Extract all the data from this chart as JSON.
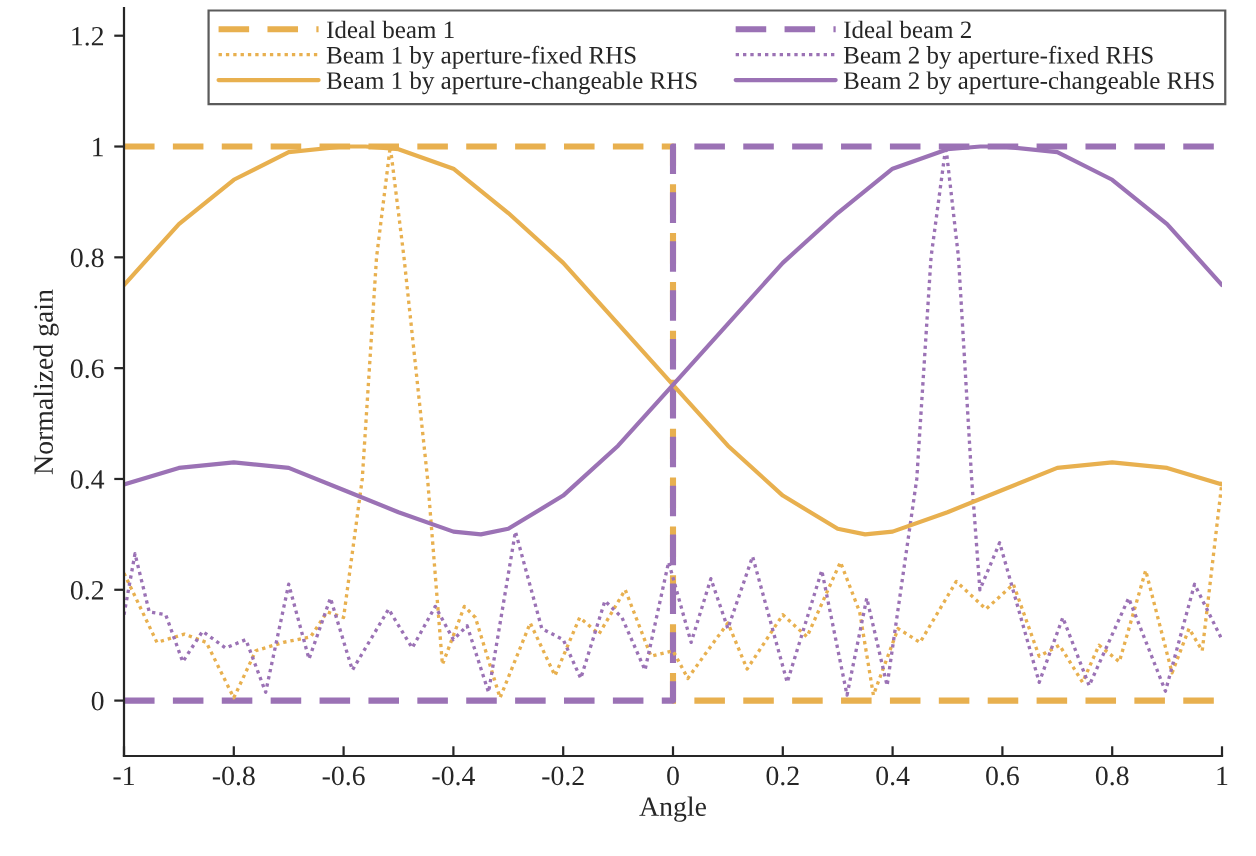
{
  "chart_data": {
    "type": "line",
    "xlabel": "Angle",
    "ylabel": "Normalized gain",
    "xlim": [
      -1,
      1
    ],
    "ylim": [
      -0.1,
      1.25
    ],
    "xticks": [
      -1,
      -0.8,
      -0.6,
      -0.4,
      -0.2,
      0,
      0.2,
      0.4,
      0.6,
      0.8,
      1
    ],
    "yticks": [
      0,
      0.2,
      0.4,
      0.6,
      0.8,
      1,
      1.2
    ],
    "grid": false,
    "legend": "top",
    "marker": "none",
    "series": [
      {
        "name": "Ideal beam 1",
        "color": "#e8b04f",
        "line_style": "dashed",
        "x": [
          -1,
          0,
          0,
          1
        ],
        "values": [
          1,
          1,
          0,
          0
        ]
      },
      {
        "name": "Ideal beam 2",
        "color": "#9b72b5",
        "line_style": "dashed",
        "x": [
          -1,
          0,
          0,
          1
        ],
        "values": [
          0,
          0,
          1,
          1
        ]
      },
      {
        "name": "Beam 1 by aperture-fixed RHS",
        "color": "#e8b04f",
        "line_style": "dotted",
        "x": [
          -1,
          -0.94,
          -0.89,
          -0.85,
          -0.8,
          -0.76,
          -0.71,
          -0.66,
          -0.63,
          -0.6,
          -0.566,
          -0.54,
          -0.515,
          -0.49,
          -0.447,
          -0.42,
          -0.38,
          -0.36,
          -0.315,
          -0.26,
          -0.215,
          -0.17,
          -0.135,
          -0.087,
          -0.04,
          0,
          0.027,
          0.063,
          0.1,
          0.135,
          0.2,
          0.244,
          0.305,
          0.34,
          0.365,
          0.41,
          0.45,
          0.516,
          0.57,
          0.62,
          0.667,
          0.704,
          0.746,
          0.776,
          0.813,
          0.861,
          0.909,
          0.94,
          0.964,
          1
        ],
        "values": [
          0.23,
          0.105,
          0.12,
          0.105,
          0.005,
          0.09,
          0.105,
          0.115,
          0.16,
          0.15,
          0.4,
          0.8,
          1,
          0.8,
          0.4,
          0.065,
          0.17,
          0.15,
          0.005,
          0.14,
          0.045,
          0.15,
          0.12,
          0.2,
          0.08,
          0.09,
          0.04,
          0.09,
          0.14,
          0.057,
          0.155,
          0.115,
          0.25,
          0.16,
          0.01,
          0.13,
          0.105,
          0.215,
          0.165,
          0.21,
          0.08,
          0.1,
          0.033,
          0.1,
          0.07,
          0.235,
          0.05,
          0.13,
          0.09,
          0.395
        ]
      },
      {
        "name": "Beam 2 by aperture-fixed RHS",
        "color": "#9b72b5",
        "line_style": "dotted",
        "x": [
          -1,
          -0.98,
          -0.954,
          -0.924,
          -0.893,
          -0.857,
          -0.815,
          -0.778,
          -0.742,
          -0.7,
          -0.663,
          -0.624,
          -0.584,
          -0.518,
          -0.475,
          -0.433,
          -0.4,
          -0.375,
          -0.336,
          -0.287,
          -0.239,
          -0.2,
          -0.168,
          -0.124,
          -0.093,
          -0.051,
          -0.008,
          0.033,
          0.069,
          0.1,
          0.145,
          0.208,
          0.271,
          0.317,
          0.353,
          0.39,
          0.444,
          0.47,
          0.497,
          0.52,
          0.544,
          0.559,
          0.595,
          0.667,
          0.71,
          0.758,
          0.83,
          0.897,
          0.95,
          1
        ],
        "values": [
          0.155,
          0.265,
          0.16,
          0.155,
          0.07,
          0.125,
          0.095,
          0.11,
          0.015,
          0.21,
          0.075,
          0.185,
          0.055,
          0.165,
          0.095,
          0.17,
          0.11,
          0.135,
          0.015,
          0.305,
          0.13,
          0.11,
          0.04,
          0.18,
          0.15,
          0.055,
          0.25,
          0.105,
          0.22,
          0.13,
          0.26,
          0.033,
          0.235,
          0.01,
          0.185,
          0.027,
          0.4,
          0.8,
          1,
          0.8,
          0.4,
          0.2,
          0.285,
          0.033,
          0.15,
          0.027,
          0.185,
          0.017,
          0.21,
          0.11
        ]
      },
      {
        "name": "Beam 1 by aperture-changeable RHS",
        "color": "#e8b04f",
        "line_style": "solid",
        "x": [
          -1,
          -0.9,
          -0.8,
          -0.7,
          -0.6,
          -0.56,
          -0.5,
          -0.4,
          -0.3,
          -0.2,
          -0.1,
          0,
          0.1,
          0.2,
          0.3,
          0.35,
          0.4,
          0.5,
          0.6,
          0.7,
          0.8,
          0.9,
          1
        ],
        "values": [
          0.75,
          0.86,
          0.94,
          0.99,
          1,
          1,
          0.995,
          0.96,
          0.88,
          0.79,
          0.68,
          0.57,
          0.46,
          0.37,
          0.31,
          0.3,
          0.305,
          0.34,
          0.38,
          0.42,
          0.43,
          0.42,
          0.39
        ]
      },
      {
        "name": "Beam 2 by aperture-changeable RHS",
        "color": "#9b72b5",
        "line_style": "solid",
        "x": [
          -1,
          -0.9,
          -0.8,
          -0.7,
          -0.6,
          -0.5,
          -0.4,
          -0.35,
          -0.3,
          -0.2,
          -0.1,
          0,
          0.1,
          0.2,
          0.3,
          0.4,
          0.5,
          0.56,
          0.6,
          0.7,
          0.8,
          0.9,
          1
        ],
        "values": [
          0.39,
          0.42,
          0.43,
          0.42,
          0.38,
          0.34,
          0.305,
          0.3,
          0.31,
          0.37,
          0.46,
          0.57,
          0.68,
          0.79,
          0.88,
          0.96,
          0.995,
          1,
          1,
          0.99,
          0.94,
          0.86,
          0.75
        ]
      }
    ]
  }
}
